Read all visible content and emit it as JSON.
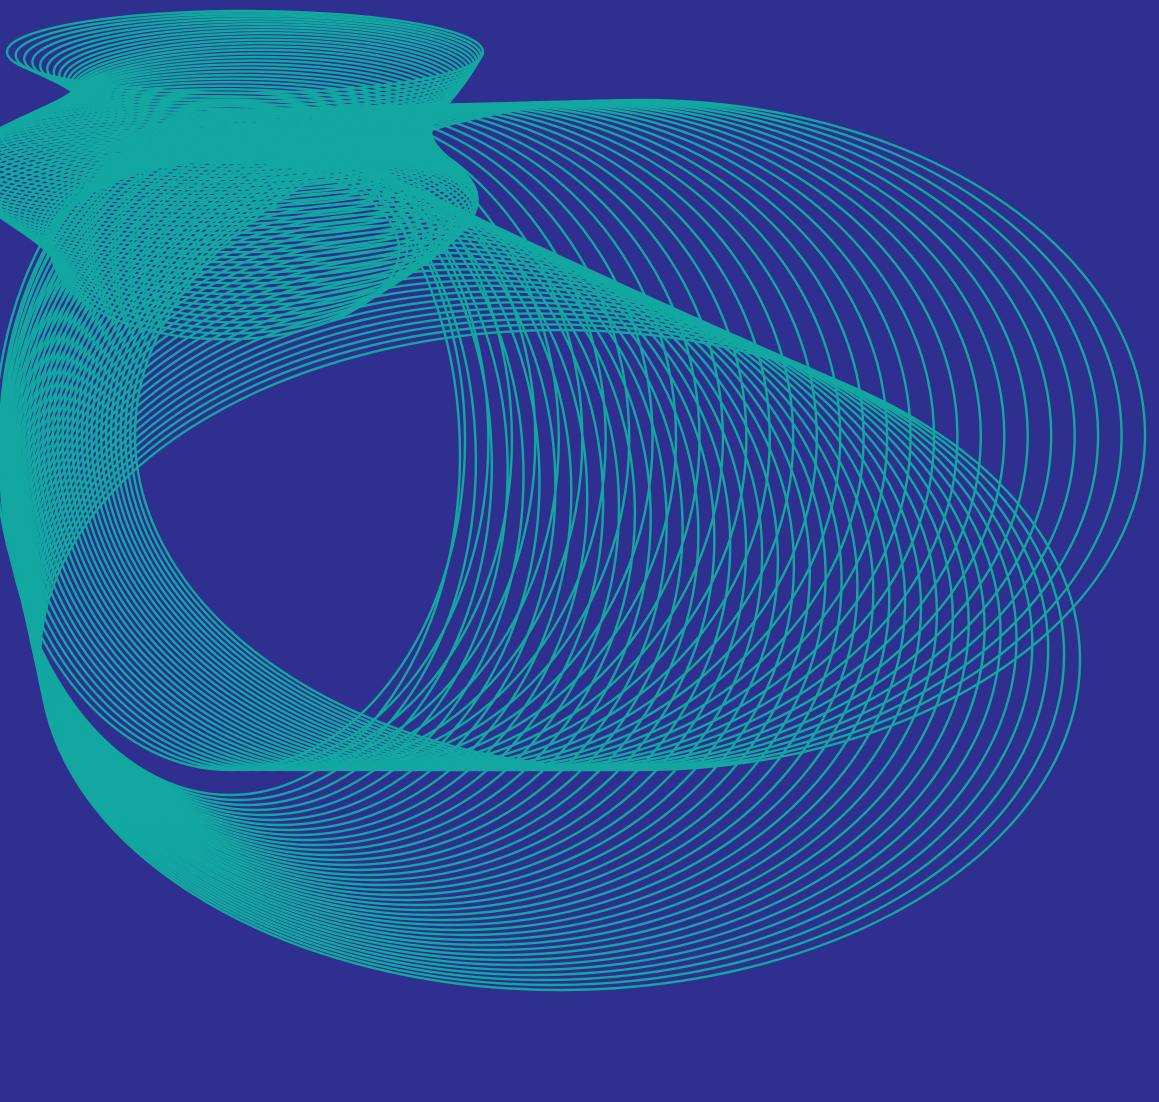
{
  "artwork": {
    "subject": "ellipse-ring-sweep",
    "background_color": "#2e2f8f",
    "stroke_color": "#13a7a1",
    "groups": [
      {
        "name": "upper-left-tube",
        "ring_count": 60
      },
      {
        "name": "large-right-sweep",
        "ring_count": 30
      },
      {
        "name": "lower-left-funnel",
        "ring_count": 40
      }
    ]
  }
}
